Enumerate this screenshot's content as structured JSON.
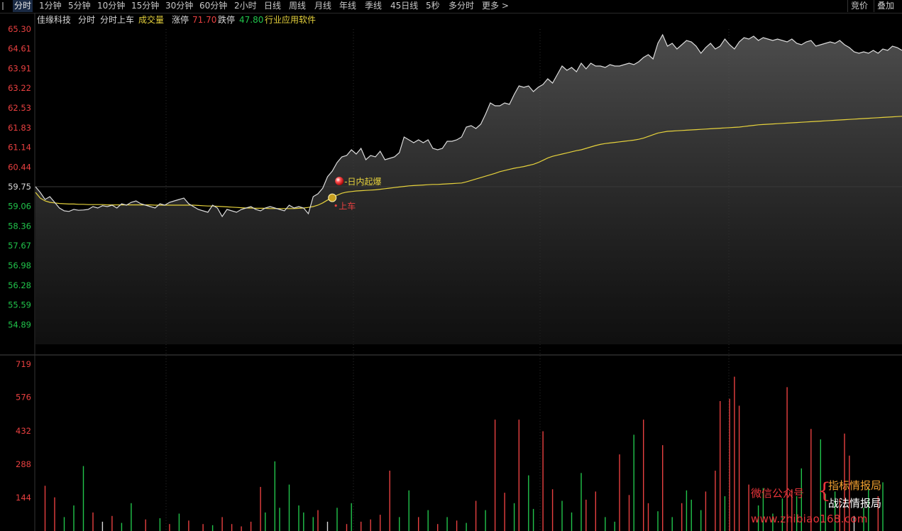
{
  "tabs": [
    {
      "label": "分时",
      "active": true
    },
    {
      "label": "1分钟"
    },
    {
      "label": "5分钟"
    },
    {
      "label": "10分钟"
    },
    {
      "label": "15分钟"
    },
    {
      "label": "30分钟"
    },
    {
      "label": "60分钟"
    },
    {
      "label": "2小时"
    },
    {
      "label": "日线"
    },
    {
      "label": "周线"
    },
    {
      "label": "月线"
    },
    {
      "label": "年线"
    },
    {
      "label": "季线"
    },
    {
      "label": "45日线"
    },
    {
      "label": "5秒"
    },
    {
      "label": "多分时"
    },
    {
      "label": "更多 >"
    }
  ],
  "right_buttons": {
    "bid": "竞价",
    "overlay": "叠加"
  },
  "info": {
    "stock_name": "佳缘科技",
    "mode": "分时",
    "indicator": "分时上车",
    "volume_label": "成交量",
    "limit_up_label": "涨停",
    "limit_up_value": "71.70",
    "limit_down_label": "跌停",
    "limit_down_value": "47.80",
    "industry": "行业应用软件"
  },
  "colors": {
    "up": "#e84040",
    "down": "#21c44b",
    "flat": "#d8d8d8",
    "price": "#d8d8d8",
    "avg": "#e6d23c",
    "industry": "#e6d23c"
  },
  "chart_data": [
    {
      "type": "line",
      "ylim": [
        54.2,
        65.3
      ],
      "yticks": [
        "65.30",
        "64.61",
        "63.91",
        "63.22",
        "62.53",
        "61.83",
        "61.14",
        "60.44",
        "59.75",
        "59.06",
        "58.36",
        "57.67",
        "56.98",
        "56.28",
        "55.59",
        "54.89"
      ],
      "prev_close": 59.75,
      "series": [
        {
          "role": "price",
          "values": [
            59.75,
            59.55,
            59.3,
            59.4,
            59.2,
            59.0,
            58.9,
            58.88,
            58.95,
            58.92,
            58.93,
            58.95,
            59.05,
            59.0,
            59.08,
            59.05,
            59.1,
            59.0,
            59.15,
            59.1,
            59.2,
            59.25,
            59.15,
            59.1,
            59.05,
            59.0,
            59.15,
            59.1,
            59.2,
            59.25,
            59.3,
            59.35,
            59.15,
            59.05,
            58.95,
            58.9,
            58.85,
            59.1,
            59.0,
            58.7,
            58.95,
            58.9,
            58.85,
            58.95,
            59.0,
            59.05,
            58.95,
            58.9,
            59.0,
            59.05,
            59.0,
            58.95,
            58.9,
            59.1,
            59.0,
            59.05,
            59.0,
            58.8,
            59.4,
            59.5,
            59.7,
            60.1,
            60.3,
            60.6,
            60.8,
            60.85,
            61.05,
            60.9,
            61.1,
            60.7,
            60.85,
            60.8,
            61.0,
            60.7,
            60.75,
            60.8,
            60.95,
            61.5,
            61.4,
            61.3,
            61.4,
            61.3,
            61.4,
            61.1,
            61.05,
            61.1,
            61.35,
            61.35,
            61.4,
            61.5,
            61.85,
            61.9,
            61.8,
            61.95,
            62.3,
            62.7,
            62.6,
            62.6,
            62.7,
            62.65,
            63.0,
            63.3,
            63.25,
            63.3,
            63.1,
            63.25,
            63.35,
            63.55,
            63.4,
            63.7,
            64.0,
            63.85,
            63.95,
            63.8,
            64.1,
            63.9,
            64.1,
            64.0,
            64.0,
            63.95,
            64.05,
            64.0,
            64.0,
            64.05,
            64.1,
            64.05,
            64.15,
            64.3,
            64.4,
            64.25,
            64.8,
            65.1,
            64.7,
            64.8,
            64.6,
            64.75,
            64.9,
            64.85,
            64.7,
            64.45,
            64.65,
            64.8,
            64.6,
            64.7,
            64.95,
            64.75,
            64.6,
            64.85,
            65.0,
            64.95,
            65.05,
            64.9,
            65.0,
            64.95,
            64.9,
            64.95,
            64.9,
            64.85,
            64.95,
            64.8,
            64.75,
            64.85,
            64.9,
            64.7,
            64.75,
            64.8,
            64.85,
            64.8,
            64.9,
            64.75,
            64.65,
            64.5,
            64.45,
            64.5,
            64.45,
            64.55,
            64.45,
            64.6,
            64.55,
            64.7,
            64.65,
            64.55
          ]
        },
        {
          "role": "avg",
          "values": [
            59.55,
            59.35,
            59.25,
            59.2,
            59.18,
            59.16,
            59.15,
            59.14,
            59.14,
            59.13,
            59.13,
            59.12,
            59.12,
            59.12,
            59.12,
            59.11,
            59.11,
            59.11,
            59.11,
            59.11,
            59.11,
            59.11,
            59.11,
            59.11,
            59.11,
            59.1,
            59.1,
            59.1,
            59.1,
            59.1,
            59.1,
            59.1,
            59.1,
            59.1,
            59.09,
            59.08,
            59.07,
            59.07,
            59.06,
            59.05,
            59.04,
            59.03,
            59.02,
            59.01,
            59.0,
            59.0,
            58.99,
            58.99,
            58.99,
            58.98,
            58.98,
            58.98,
            58.98,
            58.98,
            58.98,
            58.99,
            59.0,
            59.02,
            59.05,
            59.1,
            59.18,
            59.28,
            59.38,
            59.45,
            59.52,
            59.56,
            59.58,
            59.6,
            59.61,
            59.62,
            59.63,
            59.64,
            59.66,
            59.68,
            59.7,
            59.72,
            59.74,
            59.76,
            59.78,
            59.79,
            59.8,
            59.81,
            59.82,
            59.83,
            59.83,
            59.84,
            59.85,
            59.86,
            59.87,
            59.88,
            59.92,
            59.97,
            60.02,
            60.07,
            60.12,
            60.17,
            60.22,
            60.28,
            60.32,
            60.36,
            60.4,
            60.43,
            60.46,
            60.5,
            60.54,
            60.6,
            60.68,
            60.76,
            60.82,
            60.86,
            60.9,
            60.94,
            60.98,
            61.02,
            61.05,
            61.1,
            61.15,
            61.2,
            61.24,
            61.27,
            61.29,
            61.31,
            61.33,
            61.35,
            61.37,
            61.39,
            61.42,
            61.46,
            61.52,
            61.58,
            61.64,
            61.67,
            61.7,
            61.71,
            61.72,
            61.73,
            61.74,
            61.75,
            61.76,
            61.77,
            61.78,
            61.79,
            61.8,
            61.81,
            61.82,
            61.83,
            61.84,
            61.85,
            61.87,
            61.89,
            61.91,
            61.93,
            61.94,
            61.95,
            61.96,
            61.97,
            61.98,
            61.99,
            62.0,
            62.01,
            62.02,
            62.03,
            62.04,
            62.05,
            62.06,
            62.07,
            62.08,
            62.09,
            62.1,
            62.11,
            62.12,
            62.13,
            62.14,
            62.15,
            62.16,
            62.17,
            62.18,
            62.19,
            62.2,
            62.21,
            62.22,
            62.23,
            62.24,
            62.25,
            62.26,
            62.27
          ]
        }
      ],
      "annotations": [
        {
          "text": "日内起爆",
          "at_index": 62,
          "value": 59.75,
          "color": "#e6d23c"
        },
        {
          "text": "上车",
          "at_index": 62,
          "value": 59.06,
          "color": "#e84040"
        }
      ]
    },
    {
      "type": "bar",
      "title": "成交量",
      "ylim": [
        0,
        719
      ],
      "yticks": [
        "719",
        "576",
        "432",
        "288",
        "144"
      ],
      "bars": [
        {
          "i": 2,
          "v": 195,
          "d": "up"
        },
        {
          "i": 4,
          "v": 145,
          "d": "up"
        },
        {
          "i": 6,
          "v": 60,
          "d": "down"
        },
        {
          "i": 8,
          "v": 110,
          "d": "down"
        },
        {
          "i": 10,
          "v": 280,
          "d": "down"
        },
        {
          "i": 12,
          "v": 80,
          "d": "up"
        },
        {
          "i": 14,
          "v": 40,
          "d": "flat"
        },
        {
          "i": 16,
          "v": 65,
          "d": "up"
        },
        {
          "i": 18,
          "v": 35,
          "d": "down"
        },
        {
          "i": 20,
          "v": 120,
          "d": "down"
        },
        {
          "i": 23,
          "v": 50,
          "d": "up"
        },
        {
          "i": 26,
          "v": 55,
          "d": "down"
        },
        {
          "i": 28,
          "v": 30,
          "d": "up"
        },
        {
          "i": 30,
          "v": 75,
          "d": "down"
        },
        {
          "i": 32,
          "v": 45,
          "d": "up"
        },
        {
          "i": 35,
          "v": 30,
          "d": "up"
        },
        {
          "i": 37,
          "v": 25,
          "d": "down"
        },
        {
          "i": 39,
          "v": 60,
          "d": "up"
        },
        {
          "i": 41,
          "v": 30,
          "d": "up"
        },
        {
          "i": 43,
          "v": 20,
          "d": "up"
        },
        {
          "i": 45,
          "v": 40,
          "d": "up"
        },
        {
          "i": 47,
          "v": 190,
          "d": "up"
        },
        {
          "i": 48,
          "v": 80,
          "d": "down"
        },
        {
          "i": 50,
          "v": 300,
          "d": "down"
        },
        {
          "i": 51,
          "v": 100,
          "d": "down"
        },
        {
          "i": 53,
          "v": 200,
          "d": "down"
        },
        {
          "i": 55,
          "v": 110,
          "d": "down"
        },
        {
          "i": 56,
          "v": 80,
          "d": "down"
        },
        {
          "i": 58,
          "v": 60,
          "d": "down"
        },
        {
          "i": 59,
          "v": 90,
          "d": "up"
        },
        {
          "i": 61,
          "v": 40,
          "d": "flat"
        },
        {
          "i": 63,
          "v": 100,
          "d": "down"
        },
        {
          "i": 65,
          "v": 30,
          "d": "up"
        },
        {
          "i": 66,
          "v": 120,
          "d": "down"
        },
        {
          "i": 68,
          "v": 40,
          "d": "up"
        },
        {
          "i": 70,
          "v": 50,
          "d": "up"
        },
        {
          "i": 72,
          "v": 70,
          "d": "up"
        },
        {
          "i": 74,
          "v": 260,
          "d": "up"
        },
        {
          "i": 76,
          "v": 60,
          "d": "down"
        },
        {
          "i": 78,
          "v": 175,
          "d": "down"
        },
        {
          "i": 80,
          "v": 60,
          "d": "up"
        },
        {
          "i": 82,
          "v": 90,
          "d": "down"
        },
        {
          "i": 84,
          "v": 30,
          "d": "up"
        },
        {
          "i": 86,
          "v": 60,
          "d": "down"
        },
        {
          "i": 88,
          "v": 45,
          "d": "up"
        },
        {
          "i": 90,
          "v": 35,
          "d": "down"
        },
        {
          "i": 92,
          "v": 130,
          "d": "up"
        },
        {
          "i": 94,
          "v": 90,
          "d": "down"
        },
        {
          "i": 96,
          "v": 480,
          "d": "up"
        },
        {
          "i": 98,
          "v": 165,
          "d": "up"
        },
        {
          "i": 100,
          "v": 120,
          "d": "down"
        },
        {
          "i": 101,
          "v": 480,
          "d": "up"
        },
        {
          "i": 103,
          "v": 240,
          "d": "down"
        },
        {
          "i": 104,
          "v": 95,
          "d": "down"
        },
        {
          "i": 106,
          "v": 430,
          "d": "up"
        },
        {
          "i": 108,
          "v": 180,
          "d": "up"
        },
        {
          "i": 110,
          "v": 130,
          "d": "down"
        },
        {
          "i": 112,
          "v": 80,
          "d": "down"
        },
        {
          "i": 114,
          "v": 250,
          "d": "down"
        },
        {
          "i": 115,
          "v": 135,
          "d": "up"
        },
        {
          "i": 117,
          "v": 170,
          "d": "up"
        },
        {
          "i": 119,
          "v": 60,
          "d": "down"
        },
        {
          "i": 121,
          "v": 40,
          "d": "down"
        },
        {
          "i": 122,
          "v": 330,
          "d": "up"
        },
        {
          "i": 124,
          "v": 155,
          "d": "up"
        },
        {
          "i": 125,
          "v": 415,
          "d": "down"
        },
        {
          "i": 127,
          "v": 480,
          "d": "up"
        },
        {
          "i": 128,
          "v": 120,
          "d": "up"
        },
        {
          "i": 130,
          "v": 85,
          "d": "down"
        },
        {
          "i": 131,
          "v": 370,
          "d": "up"
        },
        {
          "i": 133,
          "v": 60,
          "d": "down"
        },
        {
          "i": 135,
          "v": 120,
          "d": "up"
        },
        {
          "i": 136,
          "v": 175,
          "d": "down"
        },
        {
          "i": 137,
          "v": 135,
          "d": "down"
        },
        {
          "i": 139,
          "v": 90,
          "d": "down"
        },
        {
          "i": 140,
          "v": 170,
          "d": "up"
        },
        {
          "i": 142,
          "v": 260,
          "d": "up"
        },
        {
          "i": 143,
          "v": 560,
          "d": "up"
        },
        {
          "i": 144,
          "v": 150,
          "d": "down"
        },
        {
          "i": 145,
          "v": 570,
          "d": "up"
        },
        {
          "i": 146,
          "v": 665,
          "d": "up"
        },
        {
          "i": 147,
          "v": 540,
          "d": "up"
        },
        {
          "i": 149,
          "v": 200,
          "d": "up"
        },
        {
          "i": 151,
          "v": 110,
          "d": "down"
        },
        {
          "i": 152,
          "v": 185,
          "d": "down"
        },
        {
          "i": 154,
          "v": 75,
          "d": "down"
        },
        {
          "i": 156,
          "v": 140,
          "d": "down"
        },
        {
          "i": 157,
          "v": 620,
          "d": "up"
        },
        {
          "i": 158,
          "v": 180,
          "d": "up"
        },
        {
          "i": 159,
          "v": 150,
          "d": "down"
        },
        {
          "i": 160,
          "v": 270,
          "d": "down"
        },
        {
          "i": 162,
          "v": 440,
          "d": "up"
        },
        {
          "i": 164,
          "v": 395,
          "d": "down"
        },
        {
          "i": 165,
          "v": 160,
          "d": "down"
        },
        {
          "i": 167,
          "v": 170,
          "d": "down"
        },
        {
          "i": 168,
          "v": 140,
          "d": "up"
        },
        {
          "i": 169,
          "v": 420,
          "d": "up"
        },
        {
          "i": 170,
          "v": 325,
          "d": "up"
        },
        {
          "i": 171,
          "v": 65,
          "d": "flat"
        },
        {
          "i": 173,
          "v": 100,
          "d": "down"
        },
        {
          "i": 174,
          "v": 180,
          "d": "down"
        },
        {
          "i": 176,
          "v": 150,
          "d": "up"
        },
        {
          "i": 177,
          "v": 210,
          "d": "down"
        }
      ]
    }
  ],
  "watermark": {
    "line1": "微信公众号",
    "brace": "{",
    "line2": "指标情报局",
    "line3": "战法情报局",
    "url": "www.zhibiao168.com"
  }
}
